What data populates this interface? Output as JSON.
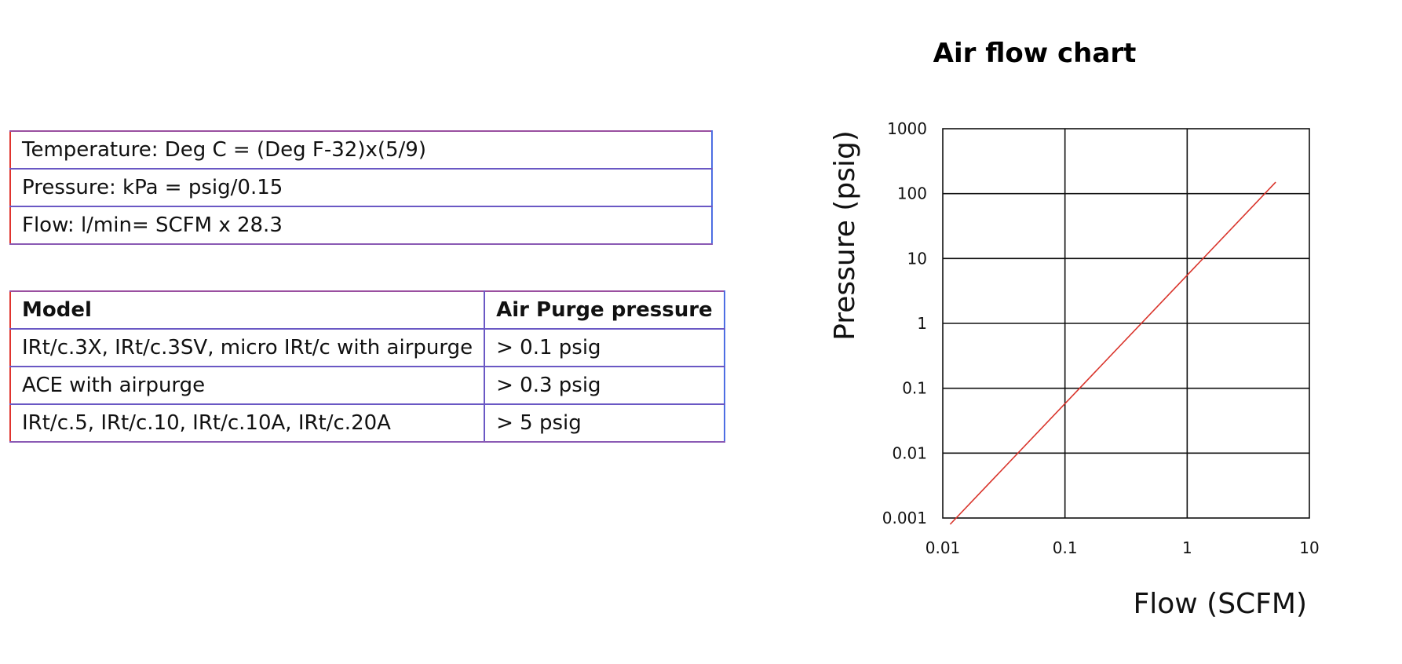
{
  "conversions": [
    "Temperature: Deg C = (Deg F-32)x(5/9)",
    "Pressure: kPa = psig/0.15",
    "Flow: l/min= SCFM x 28.3"
  ],
  "model_table": {
    "headers": [
      "Model",
      "Air Purge pressure"
    ],
    "rows": [
      [
        "IRt/c.3X, IRt/c.3SV, micro IRt/c with airpurge",
        "> 0.1 psig"
      ],
      [
        "ACE with airpurge",
        "> 0.3 psig"
      ],
      [
        "IRt/c.5, IRt/c.10, IRt/c.10A, IRt/c.20A",
        "> 5 psig"
      ]
    ]
  },
  "chart_data": {
    "type": "line",
    "title": "Air flow chart",
    "xlabel": "Flow (SCFM)",
    "ylabel": "Pressure (psig)",
    "x_scale": "log",
    "y_scale": "log",
    "xlim": [
      0.01,
      10
    ],
    "ylim": [
      0.001,
      1000
    ],
    "x_ticks": [
      "0.01",
      "0.1",
      "1",
      "10"
    ],
    "y_ticks": [
      "0.001",
      "0.01",
      "0.1",
      "1",
      "10",
      "100",
      "1000"
    ],
    "grid": true,
    "line_color": "#d9342b",
    "series": [
      {
        "x": [
          0.0115,
          5.3
        ],
        "y": [
          0.0008,
          150
        ]
      }
    ]
  }
}
